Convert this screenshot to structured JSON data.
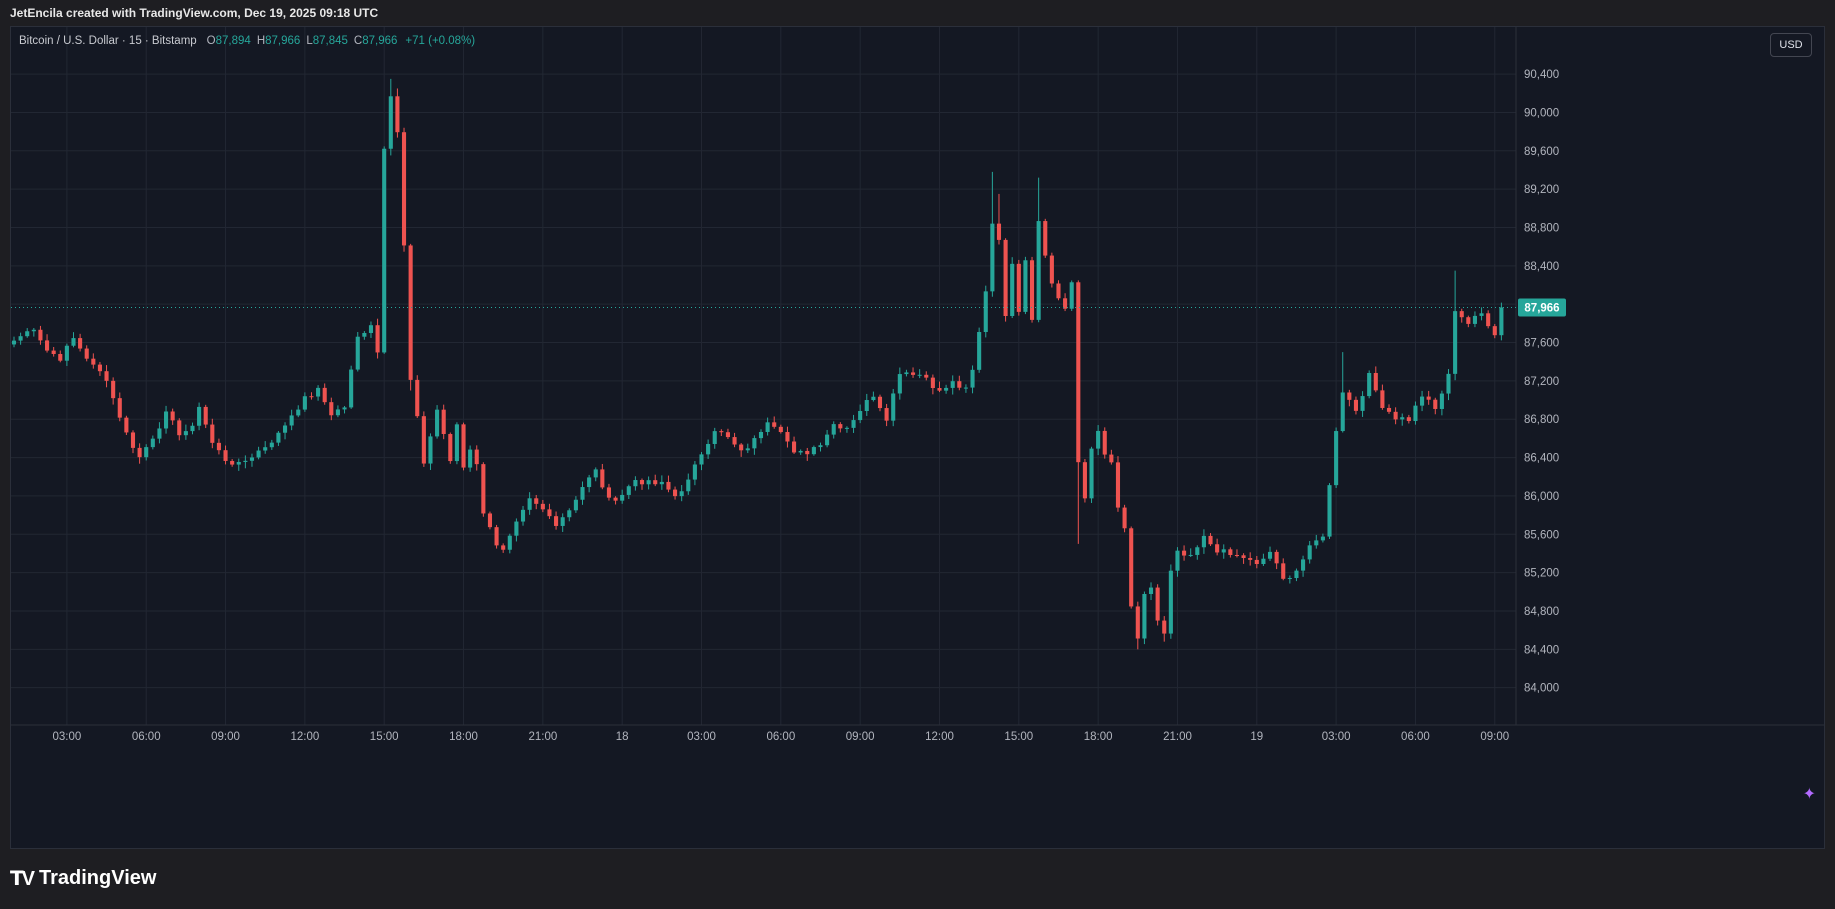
{
  "header": {
    "credit": "JetEncila created with TradingView.com, Dec 19, 2025 09:18 UTC"
  },
  "legend": {
    "symbol": "Bitcoin / U.S. Dollar · 15 · Bitstamp",
    "o_label": "O",
    "o": "87,894",
    "h_label": "H",
    "h": "87,966",
    "l_label": "L",
    "l": "87,845",
    "c_label": "C",
    "c": "87,966",
    "change": "+71 (+0.08%)"
  },
  "currency_button": "USD",
  "brand": {
    "wordmark": "TradingView",
    "logo_icon": "tradingview-logo-icon"
  },
  "colors": {
    "up": "#26a69a",
    "down": "#ef5350",
    "grid": "#222733",
    "axis_text": "#b2b5be",
    "price_label_bg": "#26a69a"
  },
  "chart_data": {
    "type": "candlestick",
    "interval": "15",
    "y_axis": {
      "ticks": [
        84000,
        84400,
        84800,
        85200,
        85600,
        86000,
        86400,
        86800,
        87200,
        87600,
        88000,
        88400,
        88800,
        89200,
        89600,
        90000,
        90400
      ],
      "tick_labels": [
        "84,000",
        "84,400",
        "84,800",
        "85,200",
        "85,600",
        "86,000",
        "86,400",
        "86,800",
        "87,200",
        "87,600",
        "88,000",
        "88,400",
        "88,800",
        "89,200",
        "89,600",
        "90,000",
        "90,400"
      ],
      "ylim": [
        83840,
        90620
      ]
    },
    "x_axis": {
      "tick_labels": [
        "03:00",
        "06:00",
        "09:00",
        "12:00",
        "15:00",
        "18:00",
        "21:00",
        "18",
        "03:00",
        "06:00",
        "09:00",
        "12:00",
        "15:00",
        "18:00",
        "21:00",
        "19",
        "03:00",
        "06:00",
        "09:00"
      ],
      "tick_bars": [
        8,
        20,
        32,
        44,
        56,
        68,
        80,
        92,
        104,
        116,
        128,
        140,
        152,
        164,
        176,
        188,
        200,
        212,
        224
      ],
      "bar_count": 226
    },
    "current_price": 87966,
    "current_price_label": "87,966",
    "anchors": [
      [
        0,
        87620
      ],
      [
        3,
        87760
      ],
      [
        5,
        87520
      ],
      [
        7,
        87440
      ],
      [
        9,
        87640
      ],
      [
        12,
        87350
      ],
      [
        14,
        87230
      ],
      [
        15,
        87020
      ],
      [
        17,
        86650
      ],
      [
        19,
        86400
      ],
      [
        21,
        86620
      ],
      [
        23,
        86850
      ],
      [
        25,
        86660
      ],
      [
        27,
        86700
      ],
      [
        28,
        86950
      ],
      [
        30,
        86550
      ],
      [
        32,
        86380
      ],
      [
        34,
        86320
      ],
      [
        36,
        86420
      ],
      [
        38,
        86520
      ],
      [
        40,
        86640
      ],
      [
        42,
        86850
      ],
      [
        44,
        87010
      ],
      [
        46,
        87100
      ],
      [
        48,
        86860
      ],
      [
        50,
        86930
      ],
      [
        51,
        87300
      ],
      [
        52,
        87650
      ],
      [
        54,
        87800
      ],
      [
        55,
        87500
      ],
      [
        56,
        89650
      ],
      [
        57,
        90200
      ],
      [
        58,
        89800
      ],
      [
        59,
        88600
      ],
      [
        60,
        87200
      ],
      [
        61,
        86800
      ],
      [
        62,
        86350
      ],
      [
        64,
        86900
      ],
      [
        65,
        86650
      ],
      [
        66,
        86340
      ],
      [
        67,
        86750
      ],
      [
        68,
        86300
      ],
      [
        69,
        86500
      ],
      [
        70,
        86350
      ],
      [
        71,
        85800
      ],
      [
        72,
        85700
      ],
      [
        73,
        85500
      ],
      [
        74,
        85420
      ],
      [
        76,
        85700
      ],
      [
        78,
        85950
      ],
      [
        80,
        85850
      ],
      [
        82,
        85720
      ],
      [
        84,
        85860
      ],
      [
        86,
        86100
      ],
      [
        88,
        86260
      ],
      [
        90,
        85950
      ],
      [
        92,
        86020
      ],
      [
        94,
        86170
      ],
      [
        96,
        86130
      ],
      [
        98,
        86120
      ],
      [
        100,
        86000
      ],
      [
        102,
        86150
      ],
      [
        104,
        86450
      ],
      [
        106,
        86700
      ],
      [
        108,
        86600
      ],
      [
        110,
        86450
      ],
      [
        112,
        86580
      ],
      [
        114,
        86800
      ],
      [
        116,
        86700
      ],
      [
        118,
        86430
      ],
      [
        120,
        86460
      ],
      [
        122,
        86560
      ],
      [
        124,
        86750
      ],
      [
        126,
        86720
      ],
      [
        128,
        86900
      ],
      [
        130,
        87060
      ],
      [
        132,
        86820
      ],
      [
        134,
        87300
      ],
      [
        136,
        87290
      ],
      [
        138,
        87240
      ],
      [
        140,
        87080
      ],
      [
        142,
        87180
      ],
      [
        144,
        87100
      ],
      [
        145,
        87300
      ],
      [
        146,
        87700
      ],
      [
        147,
        88150
      ],
      [
        148,
        88850
      ],
      [
        149,
        88700
      ],
      [
        150,
        87850
      ],
      [
        151,
        88450
      ],
      [
        152,
        87950
      ],
      [
        153,
        88480
      ],
      [
        154,
        87850
      ],
      [
        155,
        88900
      ],
      [
        156,
        88500
      ],
      [
        157,
        88220
      ],
      [
        158,
        88070
      ],
      [
        159,
        87950
      ],
      [
        160,
        88200
      ],
      [
        161,
        86350
      ],
      [
        162,
        85980
      ],
      [
        163,
        86520
      ],
      [
        164,
        86650
      ],
      [
        165,
        86420
      ],
      [
        166,
        86350
      ],
      [
        167,
        85850
      ],
      [
        168,
        85650
      ],
      [
        169,
        84850
      ],
      [
        170,
        84480
      ],
      [
        171,
        84950
      ],
      [
        172,
        85050
      ],
      [
        173,
        84700
      ],
      [
        174,
        84550
      ],
      [
        175,
        85200
      ],
      [
        176,
        85400
      ],
      [
        178,
        85350
      ],
      [
        180,
        85560
      ],
      [
        182,
        85440
      ],
      [
        184,
        85380
      ],
      [
        186,
        85360
      ],
      [
        188,
        85270
      ],
      [
        190,
        85420
      ],
      [
        192,
        85120
      ],
      [
        194,
        85230
      ],
      [
        196,
        85450
      ],
      [
        198,
        85600
      ],
      [
        199,
        86100
      ],
      [
        200,
        86700
      ],
      [
        201,
        87100
      ],
      [
        203,
        86900
      ],
      [
        205,
        87250
      ],
      [
        207,
        86950
      ],
      [
        209,
        86820
      ],
      [
        211,
        86800
      ],
      [
        213,
        87050
      ],
      [
        215,
        86900
      ],
      [
        217,
        87250
      ],
      [
        218,
        87950
      ],
      [
        220,
        87800
      ],
      [
        222,
        87900
      ],
      [
        224,
        87700
      ],
      [
        225,
        87966
      ]
    ],
    "spikes": {
      "57": {
        "h": 90350
      },
      "58": {
        "h": 90250
      },
      "148": {
        "h": 89380
      },
      "149": {
        "h": 89150
      },
      "155": {
        "h": 89320
      },
      "161": {
        "l": 85500
      },
      "170": {
        "l": 84400
      },
      "174": {
        "l": 84480
      },
      "60": {
        "l": 87100
      },
      "201": {
        "h": 87500
      },
      "218": {
        "h": 88350
      }
    }
  }
}
